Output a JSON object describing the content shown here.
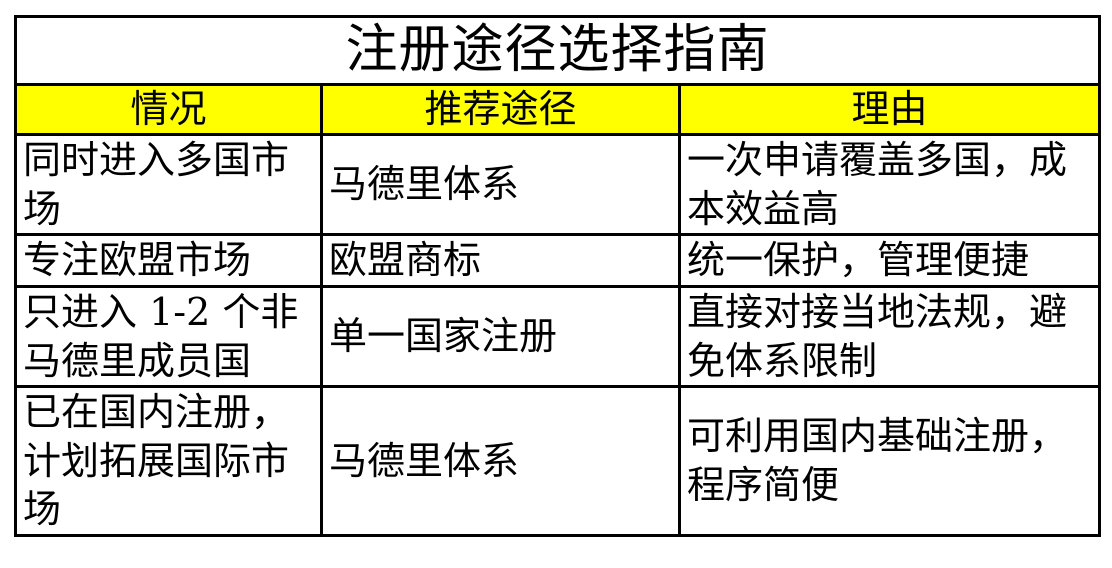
{
  "table": {
    "title": "注册途径选择指南",
    "columns": [
      "情况",
      "推荐途径",
      "理由"
    ],
    "rows": [
      {
        "situation": "同时进入多国市场",
        "path": "马德里体系",
        "reason": "一次申请覆盖多国，成本效益高"
      },
      {
        "situation": "专注欧盟市场",
        "path": "欧盟商标",
        "reason": "统一保护，管理便捷"
      },
      {
        "situation": "只进入 1-2 个非马德里成员国",
        "path": "单一国家注册",
        "reason": "直接对接当地法规，避免体系限制"
      },
      {
        "situation": "已在国内注册，计划拓展国际市场",
        "path": "马德里体系",
        "reason": "可利用国内基础注册，程序简便"
      }
    ],
    "colors": {
      "header_bg": "#FFFF00",
      "border": "#000000",
      "text": "#000000",
      "page_bg": "#FFFFFF"
    }
  }
}
